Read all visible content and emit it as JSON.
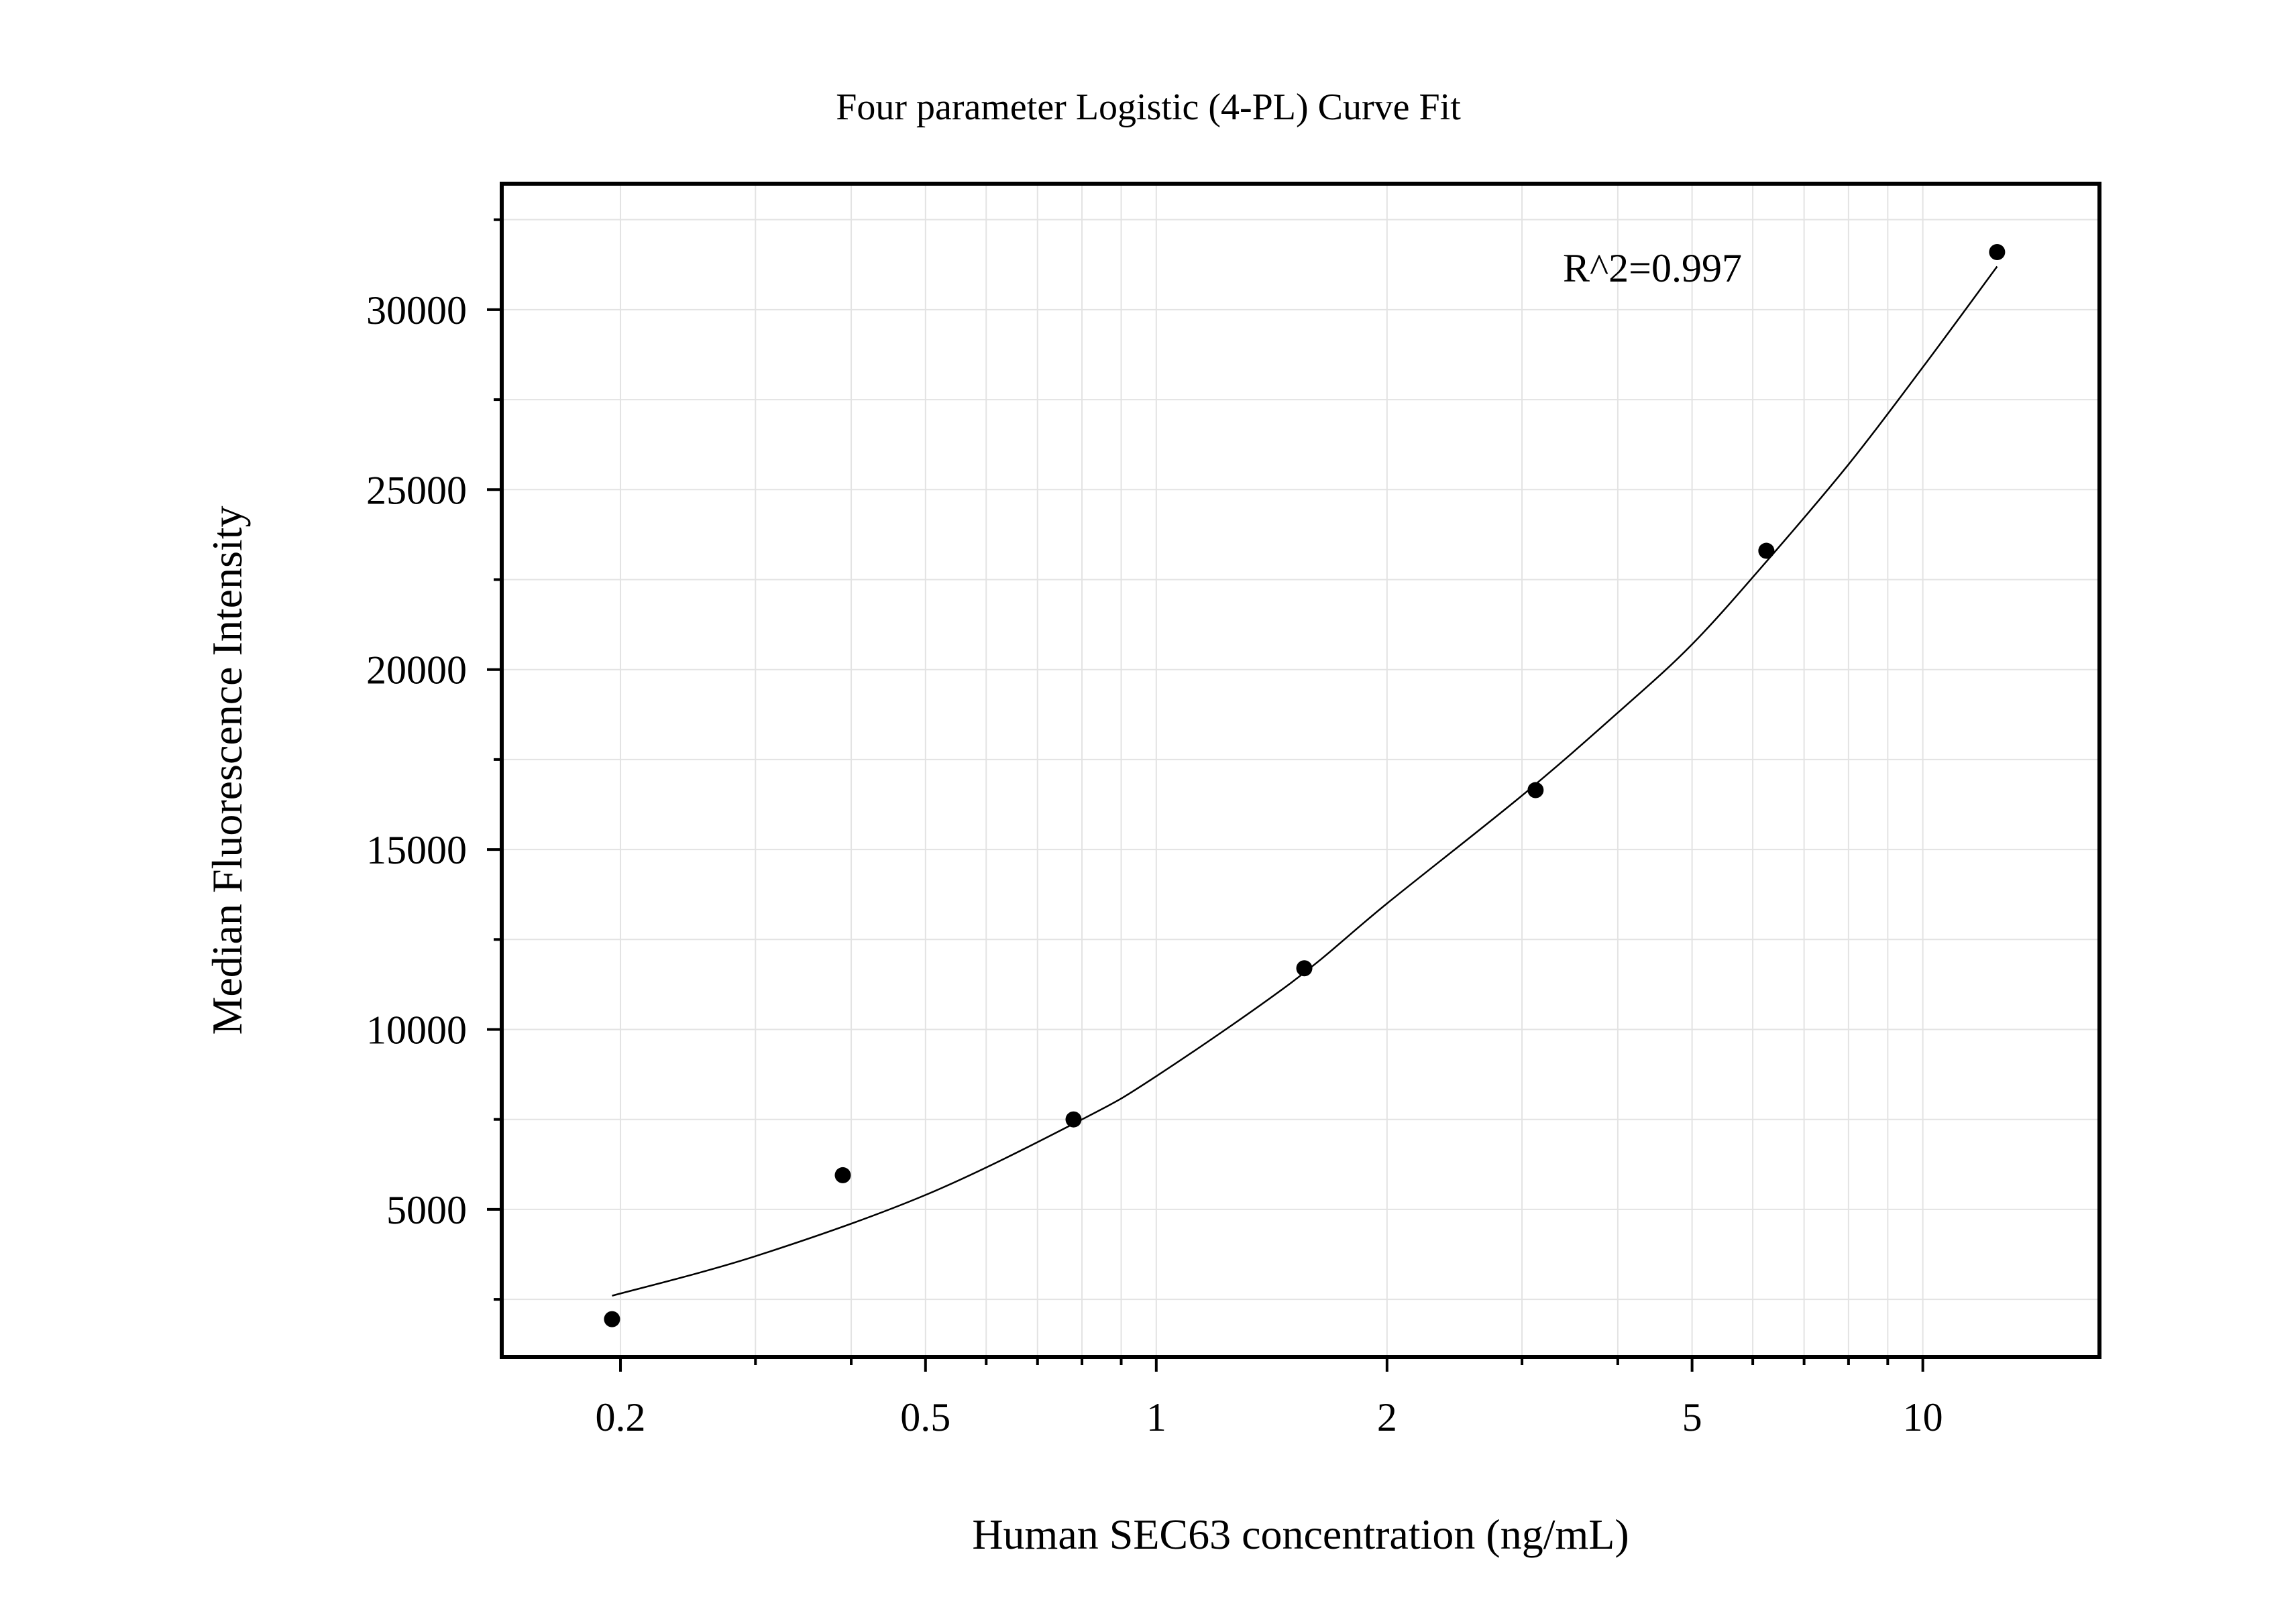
{
  "chart_data": {
    "type": "scatter",
    "title": "Four parameter Logistic (4-PL) Curve Fit",
    "xlabel": "Human SEC63 concentration (ng/mL)",
    "ylabel": "Median Fluorescence Intensity",
    "x_scale": "log",
    "xlim": [
      0.14,
      17
    ],
    "ylim": [
      900,
      33500
    ],
    "grid": true,
    "x_ticks": [
      0.2,
      0.5,
      1,
      2,
      5,
      10
    ],
    "x_tick_labels": [
      "0.2",
      "0.5",
      "1",
      "2",
      "5",
      "10"
    ],
    "y_ticks": [
      5000,
      10000,
      15000,
      20000,
      25000,
      30000
    ],
    "y_tick_labels": [
      "5000",
      "10000",
      "15000",
      "20000",
      "25000",
      "30000"
    ],
    "annotation": "R^2=0.997",
    "points": {
      "x": [
        0.195,
        0.39,
        0.78,
        1.56,
        3.125,
        6.25,
        12.5
      ],
      "y": [
        1950,
        5950,
        7500,
        11700,
        16650,
        23300,
        31600
      ]
    },
    "fit_curve": {
      "model": "4-PL",
      "x": [
        0.195,
        0.3,
        0.5,
        0.8,
        1.0,
        1.5,
        2.0,
        3.0,
        4.0,
        5.0,
        6.25,
        8.0,
        10.0,
        12.5
      ],
      "y": [
        2600,
        3700,
        5400,
        7500,
        8700,
        11300,
        13500,
        16500,
        18800,
        20700,
        23000,
        25700,
        28400,
        31200
      ]
    }
  }
}
